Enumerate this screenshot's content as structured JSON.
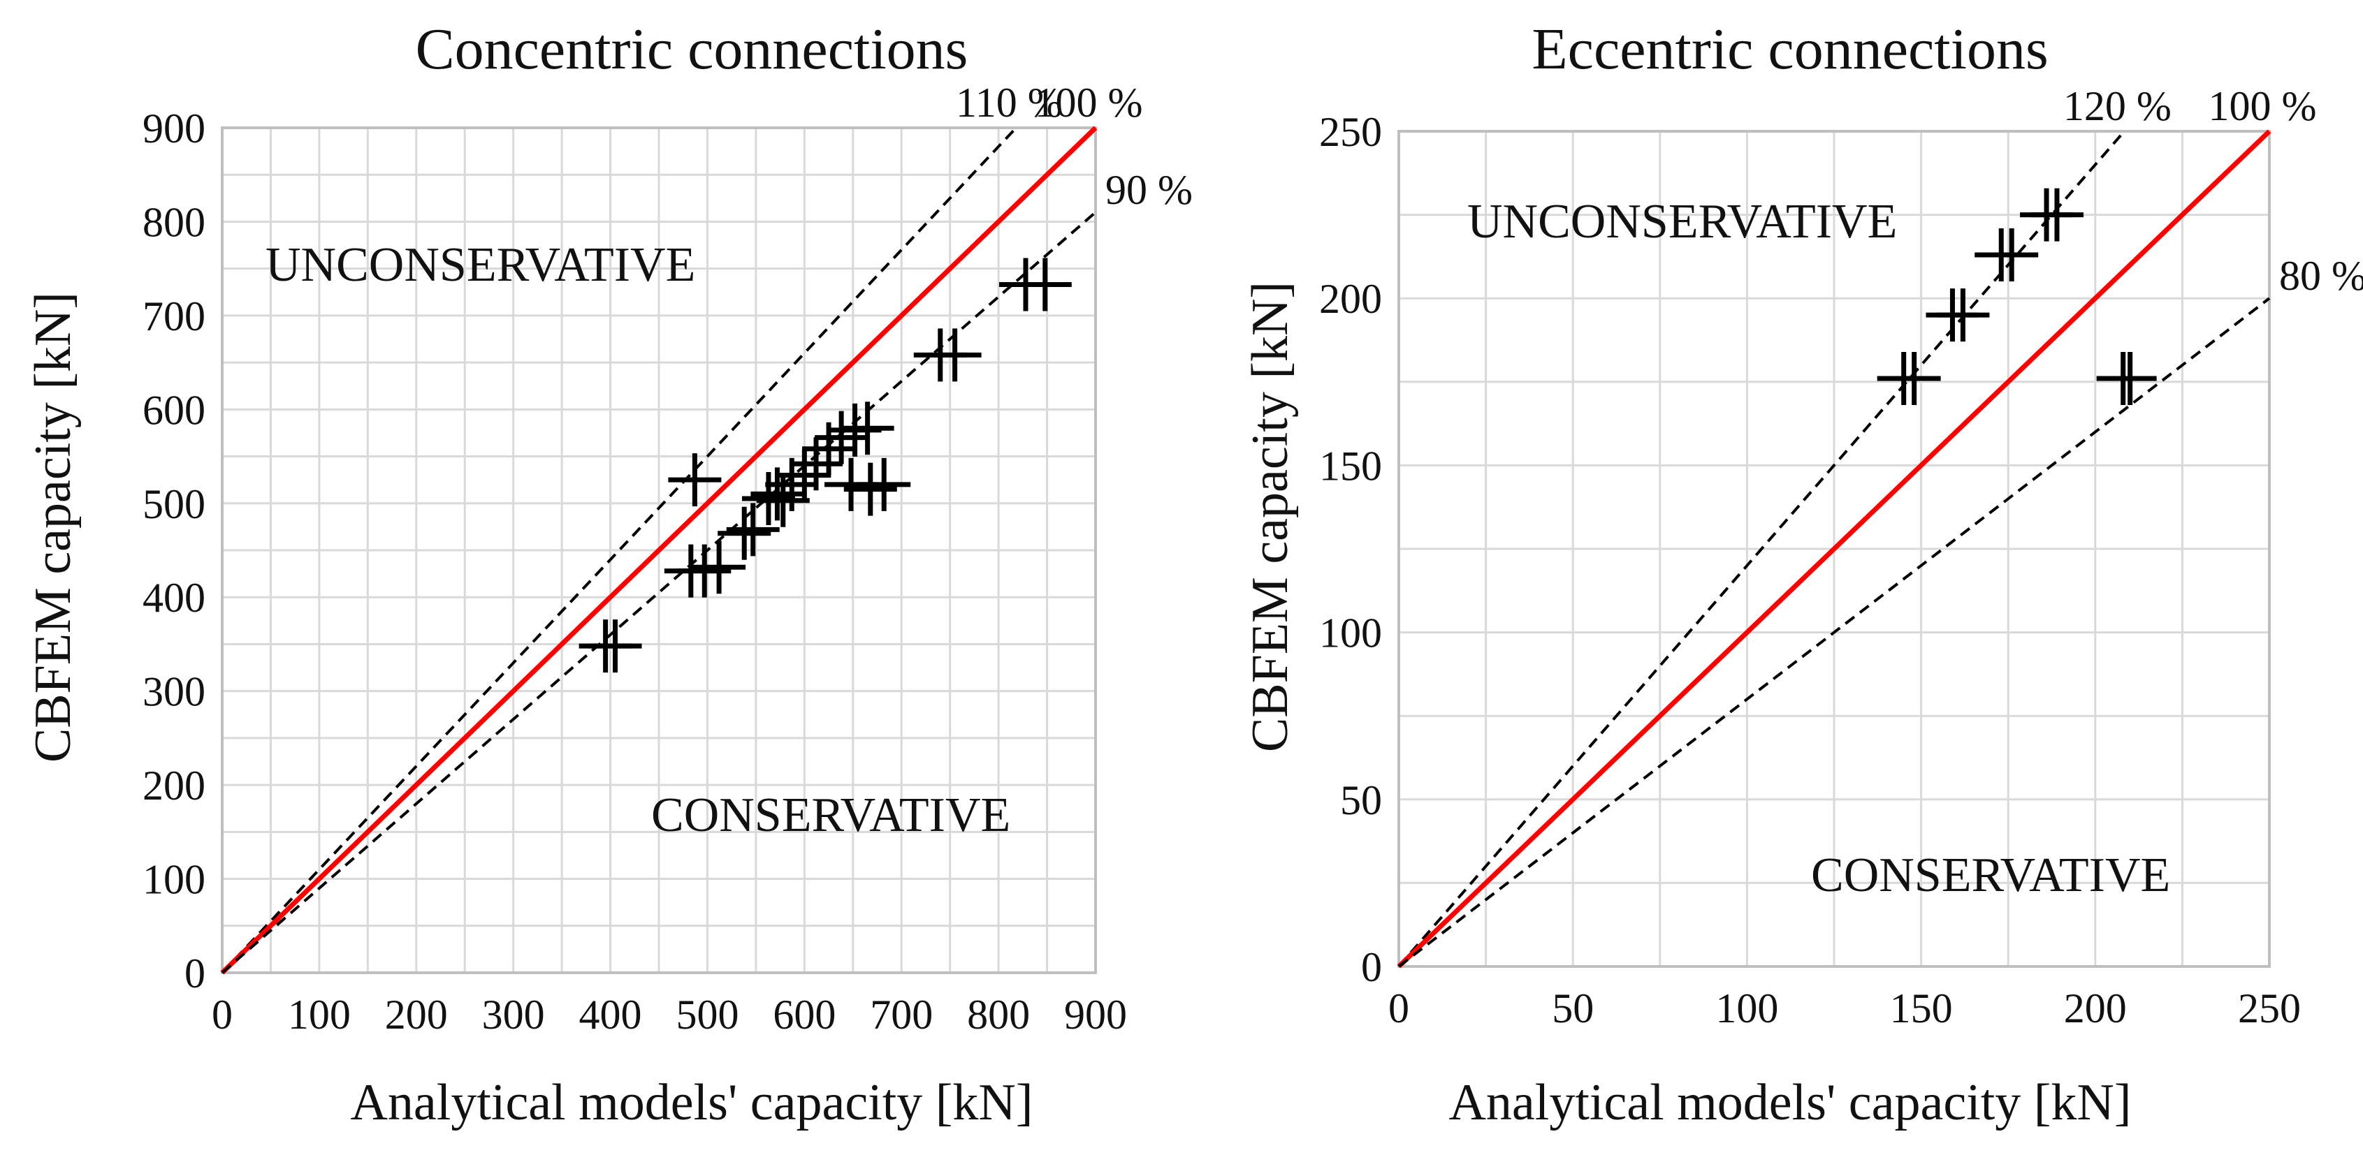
{
  "chart_data": [
    {
      "type": "scatter",
      "title": "Concentric connections",
      "xlabel": "Analytical models' capacity [kN]",
      "ylabel": "CBFEM capacity [kN]",
      "xlim": [
        0,
        900
      ],
      "ylim": [
        0,
        900
      ],
      "xticks": [
        0,
        100,
        200,
        300,
        400,
        500,
        600,
        700,
        800,
        900
      ],
      "yticks": [
        0,
        100,
        200,
        300,
        400,
        500,
        600,
        700,
        800,
        900
      ],
      "grid": true,
      "reference_lines": [
        {
          "name": "110 %",
          "slope": 1.1,
          "style": "dashed",
          "color": "#000000"
        },
        {
          "name": "100 %",
          "slope": 1.0,
          "style": "solid",
          "color": "#ff0000"
        },
        {
          "name": "90 %",
          "slope": 0.9,
          "style": "dashed",
          "color": "#000000"
        }
      ],
      "region_labels": {
        "upper": "UNCONSERVATIVE",
        "lower": "CONSERVATIVE"
      },
      "points": [
        {
          "x": 395,
          "y": 348
        },
        {
          "x": 405,
          "y": 348
        },
        {
          "x": 487,
          "y": 525
        },
        {
          "x": 483,
          "y": 428
        },
        {
          "x": 497,
          "y": 428
        },
        {
          "x": 512,
          "y": 432
        },
        {
          "x": 538,
          "y": 468
        },
        {
          "x": 547,
          "y": 472
        },
        {
          "x": 563,
          "y": 505
        },
        {
          "x": 572,
          "y": 510
        },
        {
          "x": 578,
          "y": 503
        },
        {
          "x": 587,
          "y": 520
        },
        {
          "x": 600,
          "y": 530
        },
        {
          "x": 612,
          "y": 542
        },
        {
          "x": 625,
          "y": 558
        },
        {
          "x": 638,
          "y": 570
        },
        {
          "x": 652,
          "y": 578
        },
        {
          "x": 665,
          "y": 580
        },
        {
          "x": 648,
          "y": 520
        },
        {
          "x": 668,
          "y": 515
        },
        {
          "x": 682,
          "y": 520
        },
        {
          "x": 740,
          "y": 658
        },
        {
          "x": 755,
          "y": 658
        },
        {
          "x": 828,
          "y": 733
        },
        {
          "x": 848,
          "y": 733
        }
      ]
    },
    {
      "type": "scatter",
      "title": "Eccentric connections",
      "xlabel": "Analytical models' capacity [kN]",
      "ylabel": "CBFEM capacity [kN]",
      "xlim": [
        0,
        250
      ],
      "ylim": [
        0,
        250
      ],
      "xticks": [
        0,
        50,
        100,
        150,
        200,
        250
      ],
      "yticks": [
        0,
        50,
        100,
        150,
        200,
        250
      ],
      "grid": true,
      "reference_lines": [
        {
          "name": "120 %",
          "slope": 1.2,
          "style": "dashed",
          "color": "#000000"
        },
        {
          "name": "100 %",
          "slope": 1.0,
          "style": "solid",
          "color": "#ff0000"
        },
        {
          "name": "80 %",
          "slope": 0.8,
          "style": "dashed",
          "color": "#000000"
        }
      ],
      "region_labels": {
        "upper": "UNCONSERVATIVE",
        "lower": "CONSERVATIVE"
      },
      "points": [
        {
          "x": 145,
          "y": 176
        },
        {
          "x": 148,
          "y": 176
        },
        {
          "x": 159,
          "y": 195
        },
        {
          "x": 162,
          "y": 195
        },
        {
          "x": 173,
          "y": 213
        },
        {
          "x": 176,
          "y": 213
        },
        {
          "x": 186,
          "y": 225
        },
        {
          "x": 189,
          "y": 225
        },
        {
          "x": 208,
          "y": 176
        },
        {
          "x": 210,
          "y": 176
        }
      ]
    }
  ]
}
